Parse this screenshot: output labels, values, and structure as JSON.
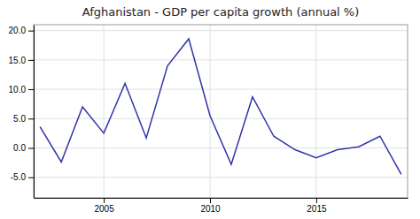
{
  "chart_data": {
    "type": "line",
    "title": "Afghanistan - GDP per capita growth (annual %)",
    "x": [
      2002,
      2003,
      2004,
      2005,
      2006,
      2007,
      2008,
      2009,
      2010,
      2011,
      2012,
      2013,
      2014,
      2015,
      2016,
      2017,
      2018,
      2019
    ],
    "values": [
      3.6,
      -2.4,
      7.0,
      2.5,
      11.0,
      1.7,
      14.0,
      18.6,
      5.5,
      -2.8,
      8.7,
      2.0,
      -0.3,
      -1.7,
      -0.3,
      0.2,
      2.0,
      -4.5
    ],
    "color": "#3333aa",
    "xlim": [
      2001.7,
      2019.3
    ],
    "ylim": [
      -8.5,
      21.0
    ],
    "xticks": [
      2005,
      2010,
      2015
    ],
    "yticks": [
      {
        "value": -5.0,
        "label": "-5.0"
      },
      {
        "value": 0.0,
        "label": "0.0"
      },
      {
        "value": 5.0,
        "label": "5.0"
      },
      {
        "value": 10.0,
        "label": "10.0"
      },
      {
        "value": 15.0,
        "label": "15.0"
      },
      {
        "value": 20.0,
        "label": "20.0"
      }
    ],
    "grid": true
  }
}
